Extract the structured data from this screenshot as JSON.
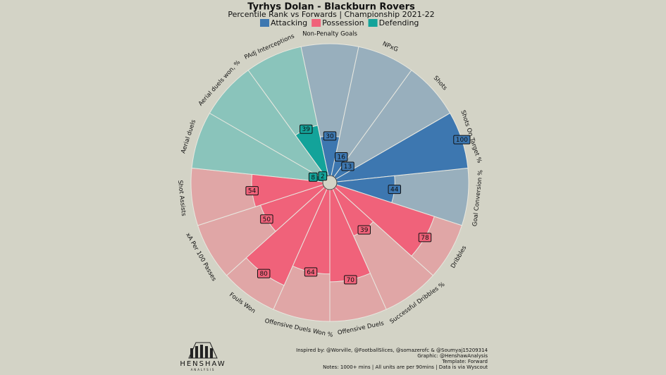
{
  "chart_data": {
    "type": "polar_bar",
    "title": "Tyrhys Dolan - Blackburn Rovers",
    "subtitle": "Percentile Rank vs Forwards | Championship 2021-22",
    "categories": [
      "Non-Penalty Goals",
      "NPxG",
      "Shots",
      "Shots On Target %",
      "Goal Conversion %",
      "Dribbles",
      "Successful Dribbles %",
      "Offensive Duels",
      "Offensive Duels Won %",
      "Fouls Won",
      "xA Per 100 Passes",
      "Shot Assists",
      "Aerial duels",
      "Aerial duels won, %",
      "PAdj Interceptions"
    ],
    "series": [
      {
        "name": "Attacking",
        "color": "#3d77b0",
        "background_color": "#98afbd",
        "values": [
          30,
          16,
          13,
          100,
          44,
          null,
          null,
          null,
          null,
          null,
          null,
          null,
          null,
          null,
          null
        ]
      },
      {
        "name": "Possession",
        "color": "#f0627a",
        "background_color": "#e0a6a6",
        "values": [
          null,
          null,
          null,
          null,
          null,
          78,
          39,
          70,
          64,
          80,
          50,
          54,
          null,
          null,
          null
        ]
      },
      {
        "name": "Defending",
        "color": "#13a39a",
        "background_color": "#8ac4bb",
        "values": [
          null,
          null,
          null,
          null,
          null,
          null,
          null,
          null,
          null,
          null,
          null,
          null,
          8,
          2,
          39
        ]
      }
    ],
    "ylim": [
      0,
      100
    ],
    "logo": {
      "name": "HENSHAW",
      "tagline": "ANALYSIS"
    },
    "notes": [
      "Inspired by: @Worville, @FootballSlices, @somazerofc & @Soumyaj15209314",
      "Graphic: @HenshawAnalysis",
      "Template: Forward",
      "Notes: 1000+ mins | All units are per 90mins | Data is via Wyscout"
    ]
  }
}
